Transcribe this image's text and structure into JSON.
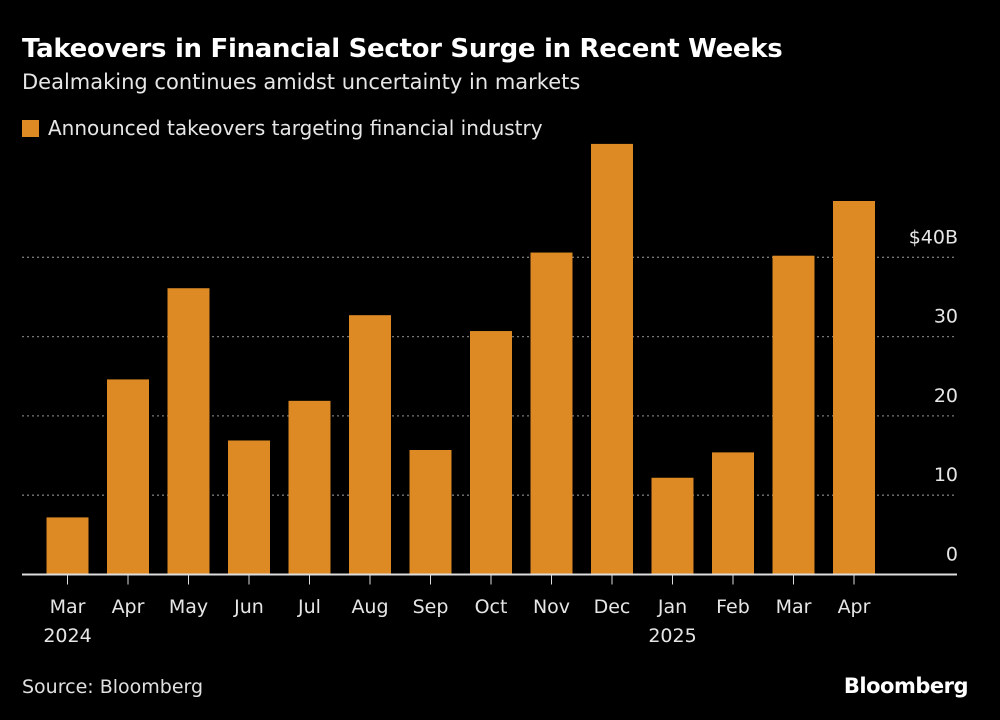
{
  "title": "Takeovers in Financial Sector Surge in Recent Weeks",
  "subtitle": "Dealmaking continues amidst uncertainty in markets",
  "source": "Source: Bloomberg",
  "logo": "Bloomberg",
  "chart_data": {
    "type": "bar",
    "categories": [
      "Mar",
      "Apr",
      "May",
      "Jun",
      "Jul",
      "Aug",
      "Sep",
      "Oct",
      "Nov",
      "Dec",
      "Jan",
      "Feb",
      "Mar",
      "Apr"
    ],
    "year_labels": {
      "0": "2024",
      "10": "2025"
    },
    "series": [
      {
        "name": "Announced takeovers targeting financial industry",
        "color": "#dd8a24",
        "values": [
          7.2,
          24.6,
          36.1,
          16.9,
          21.9,
          32.7,
          15.7,
          30.7,
          40.6,
          54.3,
          12.2,
          15.4,
          40.2,
          47.1
        ]
      }
    ],
    "yticks": [
      0,
      10,
      20,
      30,
      40
    ],
    "ytick_labels": [
      "0",
      "10",
      "20",
      "30",
      "$40B"
    ],
    "ylim": [
      0,
      55
    ],
    "grid": true,
    "legend": "top-left",
    "xlabel": "",
    "ylabel": ""
  }
}
